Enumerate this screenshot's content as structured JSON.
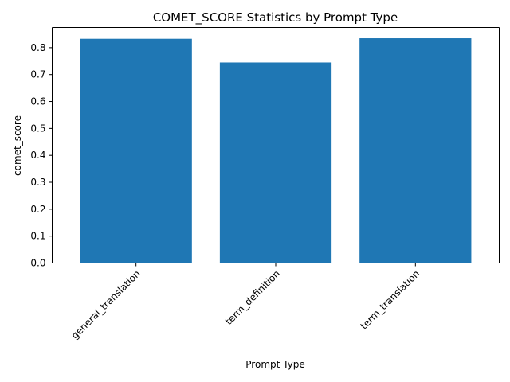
{
  "chart_data": {
    "type": "bar",
    "title": "COMET_SCORE Statistics by Prompt Type",
    "xlabel": "Prompt Type",
    "ylabel": "comet_score",
    "categories": [
      "general_translation",
      "term_definition",
      "term_translation"
    ],
    "values": [
      0.833,
      0.745,
      0.835
    ],
    "ylim": [
      0,
      0.875
    ],
    "yticks": [
      "0.0",
      "0.1",
      "0.2",
      "0.3",
      "0.4",
      "0.5",
      "0.6",
      "0.7",
      "0.8"
    ],
    "bar_color": "#1f77b4",
    "grid": false
  }
}
